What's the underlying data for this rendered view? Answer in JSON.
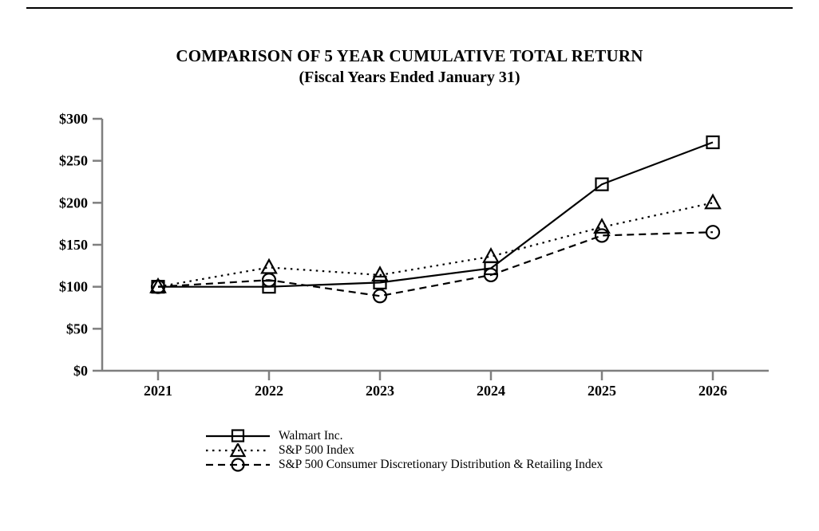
{
  "page": {
    "title": "COMPARISON OF 5 YEAR CUMULATIVE TOTAL RETURN",
    "subtitle": "(Fiscal Years Ended January 31)"
  },
  "chart_data": {
    "type": "line",
    "title": "COMPARISON OF 5 YEAR CUMULATIVE TOTAL RETURN",
    "subtitle": "(Fiscal Years Ended January 31)",
    "categories": [
      "2021",
      "2022",
      "2023",
      "2024",
      "2025",
      "2026"
    ],
    "y_ticks": [
      0,
      50,
      100,
      150,
      200,
      250,
      300
    ],
    "y_tick_labels": [
      "$0",
      "$50",
      "$100",
      "$150",
      "$200",
      "$250",
      "$300"
    ],
    "ylim": [
      0,
      300
    ],
    "grid": false,
    "legend_position": "bottom-left",
    "xlabel": "",
    "ylabel": "",
    "series": [
      {
        "name": "Walmart Inc.",
        "line": "solid",
        "marker": "square",
        "values": [
          100,
          100,
          105,
          122,
          222,
          272
        ]
      },
      {
        "name": "S&P 500 Index",
        "line": "dotted",
        "marker": "triangle",
        "values": [
          100,
          123,
          114,
          136,
          171,
          200
        ]
      },
      {
        "name": "S&P 500 Consumer Discretionary Distribution & Retailing Index",
        "line": "dashed",
        "marker": "circle",
        "values": [
          100,
          108,
          89,
          114,
          161,
          165
        ]
      }
    ],
    "colors": {
      "series": "#000000",
      "axis": "#7f7f7f",
      "text": "#000000"
    }
  }
}
